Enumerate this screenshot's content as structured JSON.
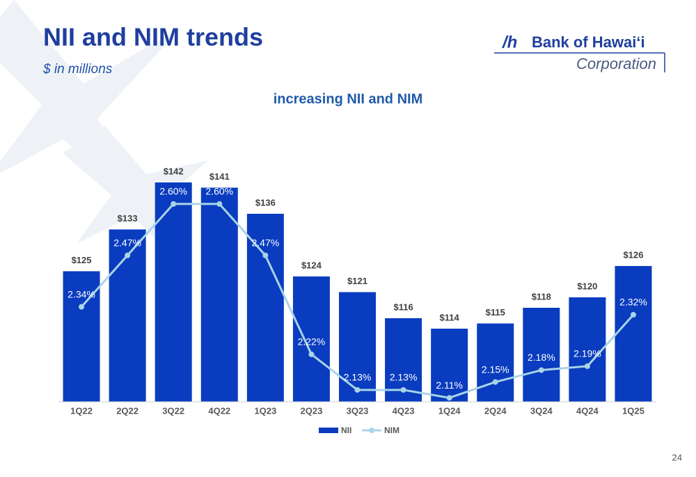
{
  "header": {
    "title": "NII and NIM trends",
    "subtitle": "$ in millions"
  },
  "logo": {
    "name": "Bank of Hawaiʻi",
    "sub": "Corporation"
  },
  "page_number": "24",
  "chart_data": {
    "type": "bar",
    "title": "increasing NII and NIM",
    "categories": [
      "1Q22",
      "2Q22",
      "3Q22",
      "4Q22",
      "1Q23",
      "2Q23",
      "3Q23",
      "4Q23",
      "1Q24",
      "2Q24",
      "3Q24",
      "4Q24",
      "1Q25"
    ],
    "series": [
      {
        "name": "NII",
        "type": "bar",
        "color": "#0a3cbf",
        "values": [
          125,
          133,
          142,
          141,
          136,
          124,
          121,
          116,
          114,
          115,
          118,
          120,
          126
        ],
        "value_labels": [
          "$125",
          "$133",
          "$142",
          "$141",
          "$136",
          "$124",
          "$121",
          "$116",
          "$114",
          "$115",
          "$118",
          "$120",
          "$126"
        ]
      },
      {
        "name": "NIM",
        "type": "line",
        "axis": "y2",
        "color": "#a9d4e8",
        "values": [
          2.34,
          2.47,
          2.6,
          2.6,
          2.47,
          2.22,
          2.13,
          2.13,
          2.11,
          2.15,
          2.18,
          2.19,
          2.32
        ],
        "value_labels": [
          "2.34%",
          "2.47%",
          "2.60%",
          "2.60%",
          "2.47%",
          "2.22%",
          "2.13%",
          "2.13%",
          "2.11%",
          "2.15%",
          "2.18%",
          "2.19%",
          "2.32%"
        ]
      }
    ],
    "ylim": [
      100,
      150
    ],
    "y2lim": [
      2.1,
      2.76
    ],
    "legend": "bottom"
  }
}
